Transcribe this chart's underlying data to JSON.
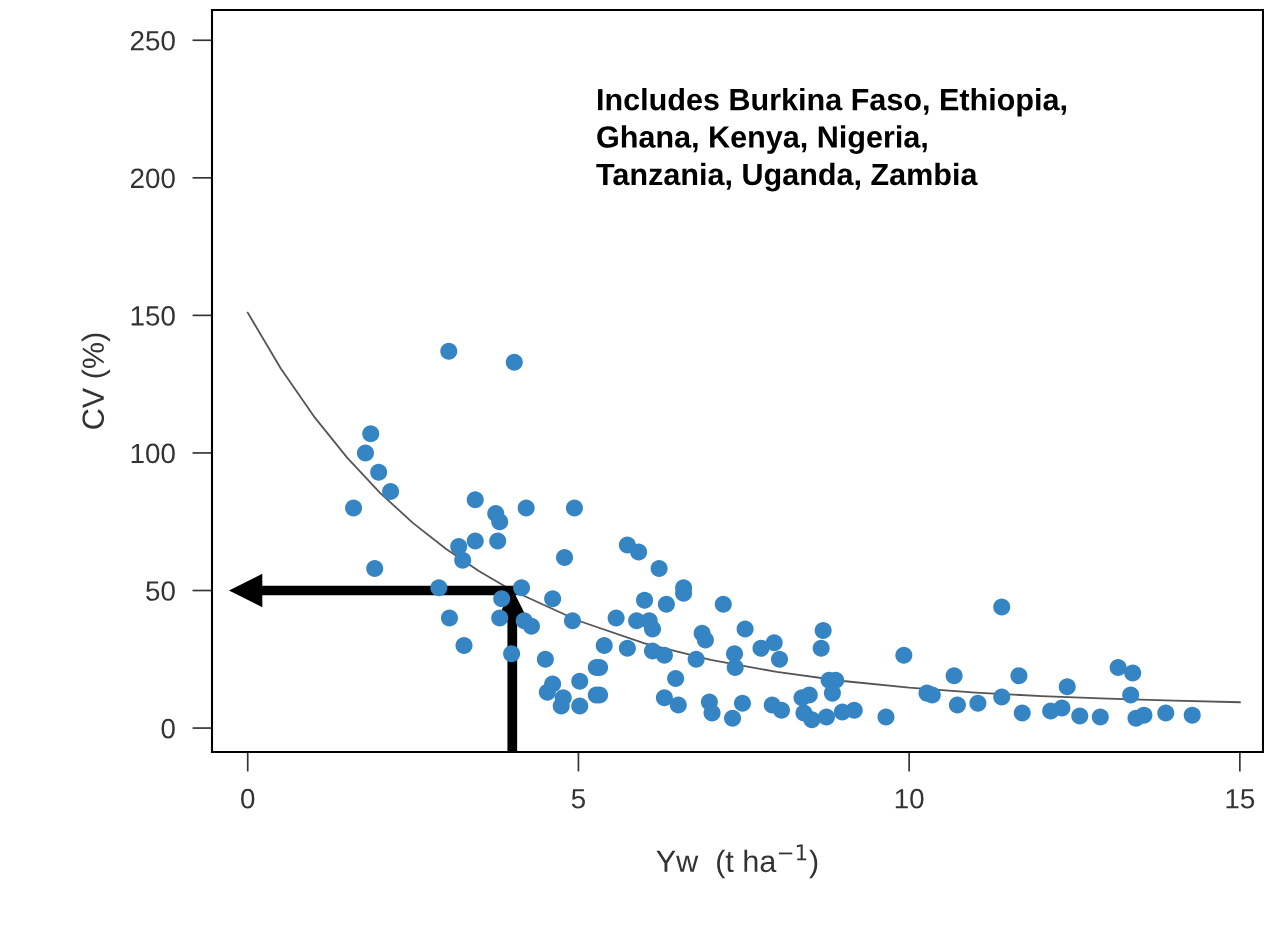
{
  "chart_data": {
    "type": "scatter",
    "xlabel": "Yw  (t ha$^{−1}$)",
    "ylabel": "CV (%)",
    "annotations": [
      "Includes Burkina Faso, Ethiopia,\nGhana, Kenya, Nigeria,\nTanzania, Uganda, Zambia"
    ],
    "xlim": [
      -0.54,
      15.35
    ],
    "ylim": [
      -8.7,
      261
    ],
    "xticks": [
      0,
      5,
      10,
      15
    ],
    "yticks": [
      0,
      50,
      100,
      150,
      200,
      250
    ],
    "grid": false,
    "ref_lines": [
      {
        "axis": "x",
        "value": 4,
        "color": "#000000"
      },
      {
        "axis": "y",
        "value": 50,
        "color": "#000000"
      }
    ],
    "series": [
      {
        "color": "#3584c3",
        "marker": "circle",
        "x": [
          3.04,
          4.03,
          1.86,
          1.78,
          1.98,
          2.16,
          1.6,
          1.92,
          3.44,
          3.75,
          3.81,
          4.21,
          4.94,
          3.44,
          3.78,
          3.19,
          3.25,
          4.79,
          2.89,
          4.14,
          3.84,
          3.05,
          3.81,
          3.27,
          3.99,
          4.18,
          4.29,
          4.61,
          4.91,
          4.5,
          4.53,
          4.61,
          4.74,
          4.77,
          5.02,
          5.02,
          5.27,
          5.27,
          5.74,
          5.91,
          6.22,
          6.59,
          6.59,
          6.0,
          6.33,
          5.57,
          5.88,
          6.07,
          6.12,
          7.19,
          7.52,
          6.87,
          6.92,
          7.76,
          7.96,
          8.04,
          8.7,
          8.67,
          5.39,
          5.74,
          6.12,
          6.3,
          6.78,
          7.36,
          7.37,
          5.32,
          5.32,
          6.47,
          6.3,
          6.51,
          6.98,
          7.02,
          7.48,
          7.33,
          7.93,
          8.07,
          8.38,
          8.49,
          8.41,
          8.53,
          8.75,
          8.79,
          8.89,
          8.84,
          8.99,
          9.17,
          9.65,
          9.92,
          10.27,
          11.4,
          10.68,
          10.35,
          10.73,
          11.04,
          11.4,
          11.66,
          11.71,
          12.14,
          12.31,
          12.39,
          12.58,
          12.89,
          13.16,
          13.38,
          13.35,
          13.43,
          13.55,
          13.88,
          14.28
        ],
        "values": [
          137,
          133,
          107,
          100,
          93,
          86,
          80,
          58,
          83,
          78,
          75,
          80,
          80,
          68,
          68,
          66,
          61,
          62,
          51,
          51,
          47,
          40,
          40,
          30,
          27,
          39,
          37,
          47,
          39,
          25,
          13,
          16,
          8,
          11,
          17,
          8,
          22,
          12,
          66.5,
          64,
          58,
          51,
          49,
          46.5,
          45,
          40,
          39,
          39,
          36,
          45,
          36,
          34.5,
          32,
          29,
          31,
          25,
          35.5,
          29,
          30,
          29,
          28,
          26.5,
          25,
          27,
          22,
          22,
          12,
          18,
          11,
          8.4,
          9.5,
          5.5,
          9,
          3.6,
          8.4,
          6.5,
          11,
          12,
          5.5,
          3,
          4,
          17.4,
          17.4,
          12.7,
          5.8,
          6.5,
          4,
          26.5,
          12.7,
          44,
          19,
          12,
          8.4,
          9,
          11.3,
          19,
          5.5,
          6.2,
          7.3,
          15,
          4.4,
          4,
          22,
          20,
          12,
          3.6,
          4.7,
          5.5,
          4.7
        ]
      },
      {
        "type": "line",
        "color": "#555555",
        "x": [
          0,
          0.5,
          1,
          1.5,
          2,
          2.5,
          3,
          3.5,
          4,
          5,
          6,
          7,
          8,
          9,
          10,
          11,
          12,
          13,
          14,
          15
        ],
        "values": [
          151,
          130.7,
          113.3,
          98.4,
          85.5,
          74.5,
          65.1,
          57,
          50,
          39,
          30.8,
          24.8,
          20.4,
          17.1,
          14.7,
          12.9,
          11.6,
          10.7,
          10,
          9.4
        ]
      }
    ]
  }
}
